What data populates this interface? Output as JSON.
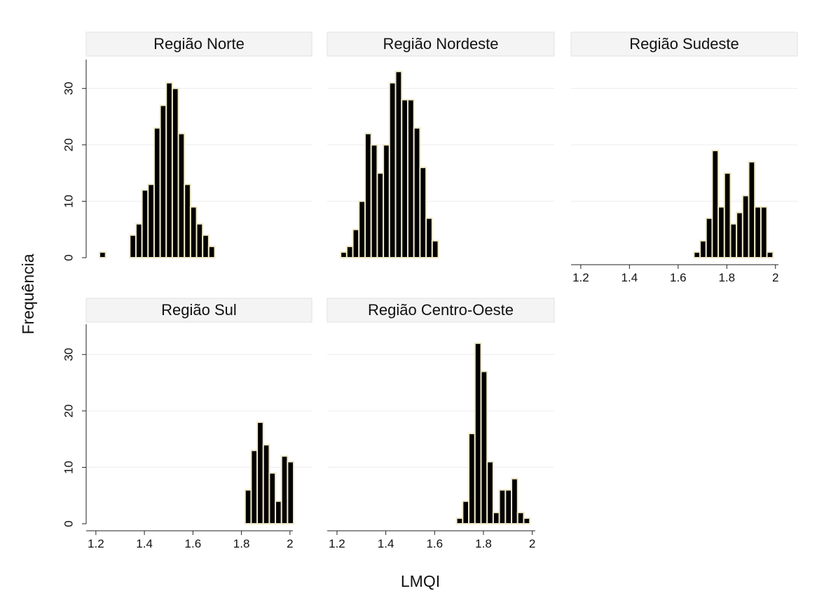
{
  "chart_data": {
    "type": "bar",
    "subtype": "histogram",
    "xlabel": "LMQI",
    "ylabel": "Frequência",
    "xlim": [
      1.2,
      2.08
    ],
    "ylim": [
      0,
      35
    ],
    "x_ticks": [
      "1.2",
      "1.4",
      "1.6",
      "1.8",
      "2"
    ],
    "y_ticks": [
      "0",
      "10",
      "20",
      "30"
    ],
    "bin_width": 0.025,
    "grid": true,
    "bar_color": "#000000",
    "bar_edge_color": "#eee8c8",
    "panels": [
      {
        "title": "Região Norte",
        "bin_starts": [
          1.215,
          1.34,
          1.365,
          1.39,
          1.415,
          1.44,
          1.465,
          1.49,
          1.515,
          1.54,
          1.565,
          1.59,
          1.615,
          1.64,
          1.665,
          1.69,
          1.715,
          1.74,
          1.765
        ],
        "values": [
          1,
          4,
          6,
          12,
          13,
          23,
          27,
          31,
          30,
          22,
          13,
          9,
          6,
          4,
          2,
          0,
          0,
          0,
          0
        ]
      },
      {
        "title": "Região Nordeste",
        "bin_starts": [
          1.215,
          1.24,
          1.265,
          1.29,
          1.315,
          1.34,
          1.365,
          1.39,
          1.415,
          1.44,
          1.465,
          1.49,
          1.515,
          1.54,
          1.565,
          1.59,
          1.615,
          1.64,
          1.665
        ],
        "values": [
          1,
          2,
          5,
          10,
          22,
          20,
          15,
          20,
          31,
          33,
          28,
          28,
          23,
          16,
          7,
          3,
          0,
          0,
          0
        ]
      },
      {
        "title": "Região Sudeste",
        "bin_starts": [
          1.665,
          1.69,
          1.715,
          1.74,
          1.765,
          1.79,
          1.815,
          1.84,
          1.865,
          1.89,
          1.915,
          1.94,
          1.965,
          1.99,
          2.015,
          2.04
        ],
        "values": [
          1,
          3,
          7,
          19,
          9,
          15,
          6,
          8,
          11,
          17,
          9,
          9,
          1,
          0,
          0,
          0
        ]
      },
      {
        "title": "Região Sul",
        "bin_starts": [
          1.815,
          1.84,
          1.865,
          1.89,
          1.915,
          1.94,
          1.965,
          1.99,
          2.015,
          2.04
        ],
        "values": [
          6,
          13,
          18,
          14,
          9,
          4,
          12,
          11,
          0,
          0
        ]
      },
      {
        "title": "Região Centro-Oeste",
        "bin_starts": [
          1.69,
          1.715,
          1.74,
          1.765,
          1.79,
          1.815,
          1.84,
          1.865,
          1.89,
          1.915,
          1.94,
          1.965,
          1.99,
          2.015,
          2.04
        ],
        "values": [
          1,
          4,
          16,
          32,
          27,
          11,
          2,
          6,
          6,
          8,
          2,
          1,
          0,
          0,
          0
        ]
      }
    ]
  }
}
